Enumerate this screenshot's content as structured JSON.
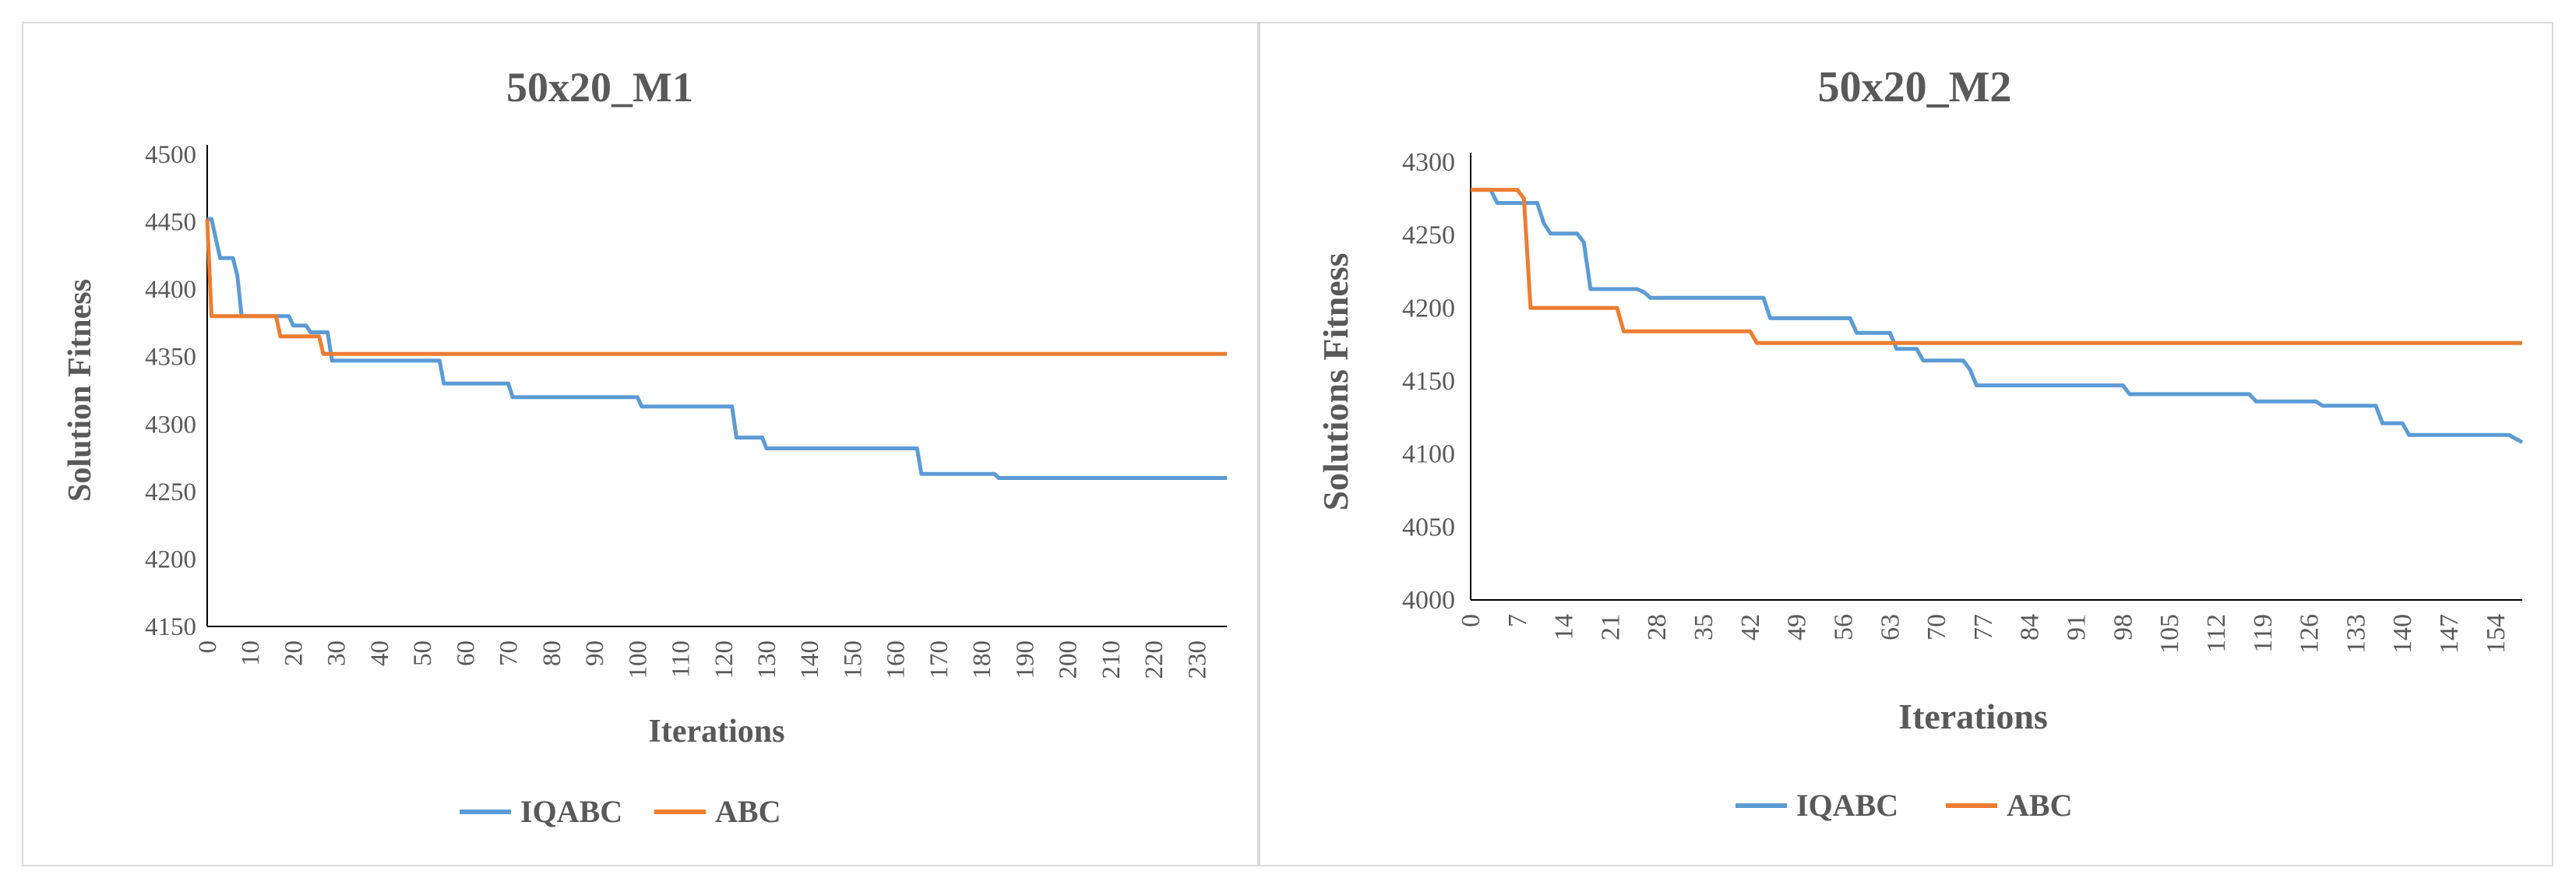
{
  "chart_data": [
    {
      "type": "line",
      "title": "50x20_M1",
      "xlabel": "Iterations",
      "ylabel": "Solution Fitness",
      "ylim": [
        4150,
        4500
      ],
      "yticks": [
        "4150",
        "4200",
        "4250",
        "4300",
        "4350",
        "4400",
        "4450",
        "4500"
      ],
      "xlim": [
        0,
        237
      ],
      "xticks": [
        "0",
        "10",
        "20",
        "30",
        "40",
        "50",
        "60",
        "70",
        "80",
        "90",
        "100",
        "110",
        "120",
        "130",
        "140",
        "150",
        "160",
        "170",
        "180",
        "190",
        "200",
        "210",
        "220",
        "230"
      ],
      "legend": [
        "IQABC",
        "ABC"
      ],
      "series": [
        {
          "name": "IQABC",
          "color": "#5B9BD5",
          "points": [
            [
              0,
              4452
            ],
            [
              1,
              4452
            ],
            [
              3,
              4423
            ],
            [
              6,
              4423
            ],
            [
              7,
              4410
            ],
            [
              8,
              4380
            ],
            [
              19,
              4380
            ],
            [
              20,
              4373
            ],
            [
              23,
              4373
            ],
            [
              24,
              4368
            ],
            [
              28,
              4368
            ],
            [
              29,
              4347
            ],
            [
              54,
              4347
            ],
            [
              55,
              4330
            ],
            [
              70,
              4330
            ],
            [
              71,
              4320
            ],
            [
              100,
              4320
            ],
            [
              101,
              4313
            ],
            [
              122,
              4313
            ],
            [
              123,
              4290
            ],
            [
              129,
              4290
            ],
            [
              130,
              4282
            ],
            [
              165,
              4282
            ],
            [
              166,
              4263
            ],
            [
              183,
              4263
            ],
            [
              184,
              4260
            ],
            [
              237,
              4260
            ]
          ]
        },
        {
          "name": "ABC",
          "color": "#ED7D31",
          "points": [
            [
              0,
              4452
            ],
            [
              1,
              4380
            ],
            [
              16,
              4380
            ],
            [
              17,
              4365
            ],
            [
              26,
              4365
            ],
            [
              27,
              4352
            ],
            [
              237,
              4352
            ]
          ]
        }
      ]
    },
    {
      "type": "line",
      "title": "50x20_M2",
      "xlabel": "Iterations",
      "ylabel": "Solutions Fitness",
      "ylim": [
        4000,
        4300
      ],
      "yticks": [
        "4000",
        "4050",
        "4100",
        "4150",
        "4200",
        "4250",
        "4300"
      ],
      "xlim": [
        0,
        158
      ],
      "xticks": [
        "0",
        "7",
        "14",
        "21",
        "28",
        "35",
        "42",
        "49",
        "56",
        "63",
        "70",
        "77",
        "84",
        "91",
        "98",
        "105",
        "112",
        "119",
        "126",
        "133",
        "140",
        "147",
        "154"
      ],
      "legend": [
        "IQABC",
        "ABC"
      ],
      "series": [
        {
          "name": "IQABC",
          "color": "#5B9BD5",
          "points": [
            [
              0,
              4281
            ],
            [
              3,
              4281
            ],
            [
              4,
              4272
            ],
            [
              10,
              4272
            ],
            [
              11,
              4258
            ],
            [
              12,
              4251
            ],
            [
              16,
              4251
            ],
            [
              17,
              4245
            ],
            [
              18,
              4213
            ],
            [
              25,
              4213
            ],
            [
              26,
              4211
            ],
            [
              27,
              4207
            ],
            [
              44,
              4207
            ],
            [
              45,
              4193
            ],
            [
              57,
              4193
            ],
            [
              58,
              4183
            ],
            [
              63,
              4183
            ],
            [
              64,
              4172
            ],
            [
              67,
              4172
            ],
            [
              68,
              4164
            ],
            [
              74,
              4164
            ],
            [
              75,
              4158
            ],
            [
              76,
              4147
            ],
            [
              98,
              4147
            ],
            [
              99,
              4141
            ],
            [
              117,
              4141
            ],
            [
              118,
              4136
            ],
            [
              127,
              4136
            ],
            [
              128,
              4133
            ],
            [
              136,
              4133
            ],
            [
              137,
              4121
            ],
            [
              140,
              4121
            ],
            [
              141,
              4113
            ],
            [
              156,
              4113
            ],
            [
              158,
              4108
            ]
          ]
        },
        {
          "name": "ABC",
          "color": "#ED7D31",
          "points": [
            [
              0,
              4281
            ],
            [
              7,
              4281
            ],
            [
              8,
              4275
            ],
            [
              9,
              4200
            ],
            [
              22,
              4200
            ],
            [
              23,
              4184
            ],
            [
              42,
              4184
            ],
            [
              43,
              4176
            ],
            [
              158,
              4176
            ]
          ]
        }
      ]
    }
  ]
}
